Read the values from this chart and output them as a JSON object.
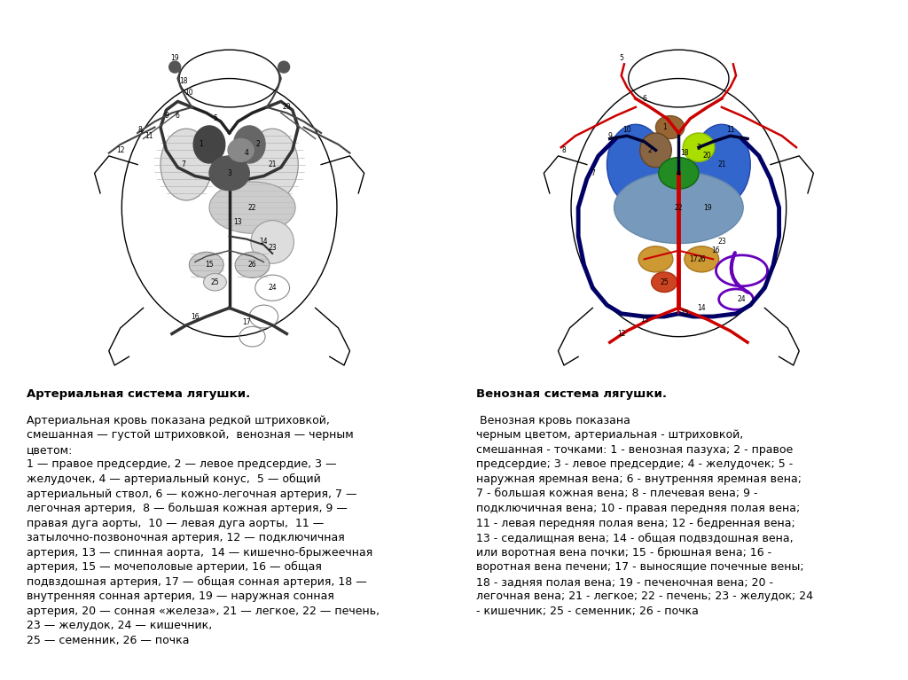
{
  "background_color": "#ffffff",
  "text_left_bold": "Артериальная система лягушки.",
  "text_left_body": "Артериальная кровь показана редкой штриховкой,\nсмешанная — густой штриховкой,  венозная — черным\nцветом:\n1 — правое предсердие, 2 — левое предсердие, 3 —\nжелудочек, 4 — артериальный конус,  5 — общий\nартериальный ствол, 6 — кожно-легочная артерия, 7 —\nлегочная артерия,  8 — большая кожная артерия, 9 —\nправая дуга аорты,  10 — левая дуга аорты,  11 —\nзатылочно-позвоночная артерия, 12 — подключичная\nартерия, 13 — спинная аорта,  14 — кишечно-брыжеечная\nартерия, 15 — мочеполовые артерии, 16 — общая\nподвздошная артерия, 17 — общая сонная артерия, 18 —\nвнутренняя сонная артерия, 19 — наружная сонная\nартерия, 20 — сонная «железа», 21 — легкое, 22 — печень,\n23 — желудок, 24 — кишечник,\n25 — семенник, 26 — почка",
  "text_right_bold": "Венозная система лягушки.",
  "text_right_body": " Венозная кровь показана\nчерным цветом, артериальная - штриховкой,\nсмешанная - точками: 1 - венозная пазуха; 2 - правое\nпредсердие; 3 - левое предсердие; 4 - желудочек; 5 -\nнаружная яремная вена; 6 - внутренняя яремная вена;\n7 - большая кожная вена; 8 - плечевая вена; 9 -\nподключичная вена; 10 - правая передняя полая вена;\n11 - левая передняя полая вена; 12 - бедренная вена;\n13 - седалищная вена; 14 - общая подвздошная вена,\nили воротная вена почки; 15 - брюшная вена; 16 -\nворотная вена печени; 17 - выносящие почечные вены;\n18 - задняя полая вена; 19 - печеночная вена; 20 -\nлегочная вена; 21 - легкое; 22 - печень; 23 - желудок; 24\n- кишечник; 25 - семенник; 26 - почка"
}
